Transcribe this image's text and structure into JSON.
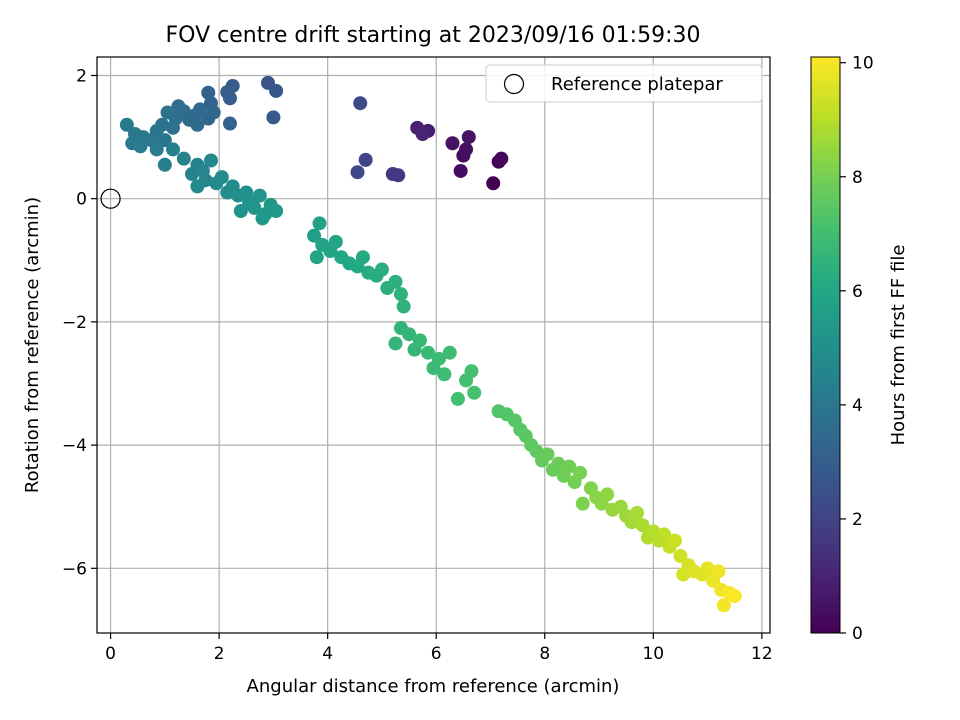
{
  "chart_data": {
    "type": "scatter",
    "title": "FOV centre drift starting at 2023/09/16 01:59:30",
    "xlabel": "Angular distance from reference (arcmin)",
    "ylabel": "Rotation from reference (arcmin)",
    "xlim": [
      -0.25,
      12.15
    ],
    "ylim": [
      -7.05,
      2.3
    ],
    "xticks": [
      0,
      2,
      4,
      6,
      8,
      10,
      12
    ],
    "yticks": [
      2,
      0,
      -2,
      -4,
      -6
    ],
    "xtick_labels": [
      "0",
      "2",
      "4",
      "6",
      "8",
      "10",
      "12"
    ],
    "ytick_labels": [
      "2",
      "0",
      "−2",
      "−4",
      "−6"
    ],
    "grid": true,
    "legend": {
      "label": "Reference platepar",
      "placement": "top-right"
    },
    "reference_point": {
      "x": 0,
      "y": 0
    },
    "colorbar": {
      "label": "Hours from first FF file",
      "min": 0,
      "max": 10.1,
      "ticks": [
        0,
        2,
        4,
        6,
        8,
        10
      ],
      "tick_labels": [
        "0",
        "2",
        "4",
        "6",
        "8",
        "10"
      ],
      "colormap": "viridis"
    },
    "series": [
      {
        "points": [
          {
            "x": 7.05,
            "y": 0.25,
            "h": 0.0
          },
          {
            "x": 7.15,
            "y": 0.6,
            "h": 0.1
          },
          {
            "x": 7.2,
            "y": 0.65,
            "h": 0.2
          },
          {
            "x": 6.5,
            "y": 0.7,
            "h": 0.3
          },
          {
            "x": 6.45,
            "y": 0.45,
            "h": 0.35
          },
          {
            "x": 6.55,
            "y": 0.8,
            "h": 0.4
          },
          {
            "x": 6.3,
            "y": 0.9,
            "h": 0.5
          },
          {
            "x": 6.6,
            "y": 1.0,
            "h": 0.55
          },
          {
            "x": 5.85,
            "y": 1.1,
            "h": 0.8
          },
          {
            "x": 5.65,
            "y": 1.15,
            "h": 0.9
          },
          {
            "x": 5.75,
            "y": 1.05,
            "h": 1.0
          },
          {
            "x": 5.3,
            "y": 0.38,
            "h": 1.6
          },
          {
            "x": 5.2,
            "y": 0.4,
            "h": 1.7
          },
          {
            "x": 4.7,
            "y": 0.63,
            "h": 2.0
          },
          {
            "x": 4.55,
            "y": 0.43,
            "h": 2.2
          },
          {
            "x": 4.6,
            "y": 1.55,
            "h": 2.3
          },
          {
            "x": 2.9,
            "y": 1.88,
            "h": 2.6
          },
          {
            "x": 3.05,
            "y": 1.75,
            "h": 2.7
          },
          {
            "x": 3.0,
            "y": 1.32,
            "h": 2.8
          },
          {
            "x": 2.25,
            "y": 1.83,
            "h": 2.9
          },
          {
            "x": 2.15,
            "y": 1.73,
            "h": 3.0
          },
          {
            "x": 2.2,
            "y": 1.63,
            "h": 3.0
          },
          {
            "x": 2.2,
            "y": 1.22,
            "h": 3.1
          },
          {
            "x": 1.8,
            "y": 1.72,
            "h": 3.2
          },
          {
            "x": 1.85,
            "y": 1.55,
            "h": 3.2
          },
          {
            "x": 1.9,
            "y": 1.4,
            "h": 3.3
          },
          {
            "x": 1.8,
            "y": 1.3,
            "h": 3.3
          },
          {
            "x": 1.65,
            "y": 1.45,
            "h": 3.4
          },
          {
            "x": 1.55,
            "y": 1.35,
            "h": 3.4
          },
          {
            "x": 1.6,
            "y": 1.2,
            "h": 3.5
          },
          {
            "x": 1.45,
            "y": 1.28,
            "h": 3.5
          },
          {
            "x": 1.35,
            "y": 1.42,
            "h": 3.6
          },
          {
            "x": 1.25,
            "y": 1.5,
            "h": 3.6
          },
          {
            "x": 1.2,
            "y": 1.3,
            "h": 3.7
          },
          {
            "x": 1.15,
            "y": 1.15,
            "h": 3.7
          },
          {
            "x": 1.05,
            "y": 1.4,
            "h": 3.8
          },
          {
            "x": 0.95,
            "y": 1.2,
            "h": 3.8
          },
          {
            "x": 0.85,
            "y": 1.1,
            "h": 3.9
          },
          {
            "x": 1.0,
            "y": 0.95,
            "h": 3.9
          },
          {
            "x": 0.75,
            "y": 0.95,
            "h": 4.0
          },
          {
            "x": 0.6,
            "y": 1.0,
            "h": 4.0
          },
          {
            "x": 0.45,
            "y": 1.05,
            "h": 4.05
          },
          {
            "x": 0.3,
            "y": 1.2,
            "h": 4.1
          },
          {
            "x": 0.4,
            "y": 0.9,
            "h": 4.1
          },
          {
            "x": 0.55,
            "y": 0.85,
            "h": 4.15
          },
          {
            "x": 0.85,
            "y": 0.8,
            "h": 4.2
          },
          {
            "x": 1.0,
            "y": 0.55,
            "h": 4.3
          },
          {
            "x": 1.15,
            "y": 0.8,
            "h": 4.35
          },
          {
            "x": 1.35,
            "y": 0.65,
            "h": 4.4
          },
          {
            "x": 1.5,
            "y": 0.4,
            "h": 4.5
          },
          {
            "x": 1.6,
            "y": 0.55,
            "h": 4.5
          },
          {
            "x": 1.7,
            "y": 0.45,
            "h": 4.6
          },
          {
            "x": 1.75,
            "y": 0.3,
            "h": 4.6
          },
          {
            "x": 1.6,
            "y": 0.2,
            "h": 4.7
          },
          {
            "x": 1.85,
            "y": 0.62,
            "h": 4.7
          },
          {
            "x": 1.95,
            "y": 0.25,
            "h": 4.8
          },
          {
            "x": 2.05,
            "y": 0.35,
            "h": 4.8
          },
          {
            "x": 2.15,
            "y": 0.1,
            "h": 4.9
          },
          {
            "x": 2.25,
            "y": 0.2,
            "h": 4.9
          },
          {
            "x": 2.35,
            "y": 0.05,
            "h": 5.0
          },
          {
            "x": 2.5,
            "y": 0.1,
            "h": 5.0
          },
          {
            "x": 2.4,
            "y": -0.2,
            "h": 5.1
          },
          {
            "x": 2.55,
            "y": -0.05,
            "h": 5.1
          },
          {
            "x": 2.65,
            "y": -0.15,
            "h": 5.2
          },
          {
            "x": 2.75,
            "y": 0.05,
            "h": 5.2
          },
          {
            "x": 2.85,
            "y": -0.25,
            "h": 5.3
          },
          {
            "x": 2.95,
            "y": -0.1,
            "h": 5.3
          },
          {
            "x": 3.05,
            "y": -0.2,
            "h": 5.35
          },
          {
            "x": 2.8,
            "y": -0.32,
            "h": 5.4
          },
          {
            "x": 3.75,
            "y": -0.6,
            "h": 5.7
          },
          {
            "x": 3.85,
            "y": -0.4,
            "h": 5.75
          },
          {
            "x": 3.9,
            "y": -0.75,
            "h": 5.8
          },
          {
            "x": 3.8,
            "y": -0.95,
            "h": 5.85
          },
          {
            "x": 4.05,
            "y": -0.85,
            "h": 5.9
          },
          {
            "x": 4.15,
            "y": -0.7,
            "h": 5.95
          },
          {
            "x": 4.25,
            "y": -0.95,
            "h": 6.0
          },
          {
            "x": 4.4,
            "y": -1.05,
            "h": 6.05
          },
          {
            "x": 4.55,
            "y": -1.1,
            "h": 6.1
          },
          {
            "x": 4.65,
            "y": -0.95,
            "h": 6.15
          },
          {
            "x": 4.75,
            "y": -1.2,
            "h": 6.2
          },
          {
            "x": 4.9,
            "y": -1.25,
            "h": 6.25
          },
          {
            "x": 5.0,
            "y": -1.15,
            "h": 6.3
          },
          {
            "x": 5.1,
            "y": -1.45,
            "h": 6.35
          },
          {
            "x": 5.25,
            "y": -1.35,
            "h": 6.4
          },
          {
            "x": 5.35,
            "y": -1.55,
            "h": 6.45
          },
          {
            "x": 5.4,
            "y": -1.75,
            "h": 6.5
          },
          {
            "x": 5.35,
            "y": -2.1,
            "h": 6.55
          },
          {
            "x": 5.5,
            "y": -2.2,
            "h": 6.6
          },
          {
            "x": 5.25,
            "y": -2.35,
            "h": 6.6
          },
          {
            "x": 5.6,
            "y": -2.45,
            "h": 6.65
          },
          {
            "x": 5.7,
            "y": -2.3,
            "h": 6.7
          },
          {
            "x": 5.85,
            "y": -2.5,
            "h": 6.75
          },
          {
            "x": 5.95,
            "y": -2.75,
            "h": 6.8
          },
          {
            "x": 6.05,
            "y": -2.6,
            "h": 6.85
          },
          {
            "x": 6.15,
            "y": -2.85,
            "h": 6.9
          },
          {
            "x": 6.25,
            "y": -2.5,
            "h": 6.95
          },
          {
            "x": 6.4,
            "y": -3.25,
            "h": 7.0
          },
          {
            "x": 6.55,
            "y": -2.95,
            "h": 7.05
          },
          {
            "x": 6.65,
            "y": -2.8,
            "h": 7.1
          },
          {
            "x": 6.7,
            "y": -3.15,
            "h": 7.15
          },
          {
            "x": 7.15,
            "y": -3.45,
            "h": 7.3
          },
          {
            "x": 7.3,
            "y": -3.5,
            "h": 7.35
          },
          {
            "x": 7.45,
            "y": -3.6,
            "h": 7.4
          },
          {
            "x": 7.55,
            "y": -3.75,
            "h": 7.45
          },
          {
            "x": 7.65,
            "y": -3.85,
            "h": 7.5
          },
          {
            "x": 7.75,
            "y": -4.0,
            "h": 7.55
          },
          {
            "x": 7.85,
            "y": -4.1,
            "h": 7.6
          },
          {
            "x": 7.95,
            "y": -4.25,
            "h": 7.65
          },
          {
            "x": 8.05,
            "y": -4.15,
            "h": 7.7
          },
          {
            "x": 8.15,
            "y": -4.4,
            "h": 7.75
          },
          {
            "x": 8.25,
            "y": -4.3,
            "h": 7.8
          },
          {
            "x": 8.35,
            "y": -4.5,
            "h": 7.85
          },
          {
            "x": 8.45,
            "y": -4.35,
            "h": 7.9
          },
          {
            "x": 8.55,
            "y": -4.6,
            "h": 7.95
          },
          {
            "x": 8.65,
            "y": -4.45,
            "h": 8.0
          },
          {
            "x": 8.7,
            "y": -4.95,
            "h": 8.1
          },
          {
            "x": 8.85,
            "y": -4.7,
            "h": 8.2
          },
          {
            "x": 8.95,
            "y": -4.85,
            "h": 8.3
          },
          {
            "x": 9.05,
            "y": -4.95,
            "h": 8.35
          },
          {
            "x": 9.15,
            "y": -4.8,
            "h": 8.4
          },
          {
            "x": 9.25,
            "y": -5.05,
            "h": 8.5
          },
          {
            "x": 9.4,
            "y": -5.0,
            "h": 8.55
          },
          {
            "x": 9.5,
            "y": -5.15,
            "h": 8.6
          },
          {
            "x": 9.6,
            "y": -5.25,
            "h": 8.7
          },
          {
            "x": 9.7,
            "y": -5.1,
            "h": 8.75
          },
          {
            "x": 9.8,
            "y": -5.3,
            "h": 8.8
          },
          {
            "x": 9.9,
            "y": -5.5,
            "h": 8.9
          },
          {
            "x": 10.0,
            "y": -5.4,
            "h": 8.95
          },
          {
            "x": 10.1,
            "y": -5.55,
            "h": 9.0
          },
          {
            "x": 10.2,
            "y": -5.45,
            "h": 9.1
          },
          {
            "x": 10.3,
            "y": -5.65,
            "h": 9.2
          },
          {
            "x": 10.4,
            "y": -5.55,
            "h": 9.3
          },
          {
            "x": 10.5,
            "y": -5.8,
            "h": 9.35
          },
          {
            "x": 10.55,
            "y": -6.1,
            "h": 9.45
          },
          {
            "x": 10.65,
            "y": -5.95,
            "h": 9.5
          },
          {
            "x": 10.75,
            "y": -6.05,
            "h": 9.6
          },
          {
            "x": 10.9,
            "y": -6.1,
            "h": 9.65
          },
          {
            "x": 11.0,
            "y": -6.0,
            "h": 9.7
          },
          {
            "x": 11.1,
            "y": -6.2,
            "h": 9.8
          },
          {
            "x": 11.2,
            "y": -6.05,
            "h": 9.85
          },
          {
            "x": 11.25,
            "y": -6.35,
            "h": 9.9
          },
          {
            "x": 11.3,
            "y": -6.6,
            "h": 9.95
          },
          {
            "x": 11.4,
            "y": -6.4,
            "h": 10.0
          },
          {
            "x": 11.5,
            "y": -6.45,
            "h": 10.05
          }
        ]
      }
    ]
  }
}
